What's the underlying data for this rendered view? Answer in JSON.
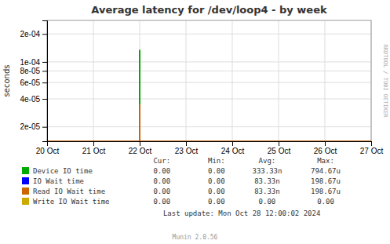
{
  "chart_data": {
    "type": "line",
    "title": "Average latency for /dev/loop4 - by week",
    "ylabel": "seconds",
    "log": "y",
    "grid": true,
    "legend": "bottom",
    "xlim": [
      1729296000,
      1729900800
    ],
    "xticks": [
      {
        "value": 1729296000,
        "label": "20 Oct"
      },
      {
        "value": 1729382400,
        "label": "21 Oct"
      },
      {
        "value": 1729468800,
        "label": "22 Oct"
      },
      {
        "value": 1729555200,
        "label": "23 Oct"
      },
      {
        "value": 1729641600,
        "label": "24 Oct"
      },
      {
        "value": 1729728000,
        "label": "25 Oct"
      },
      {
        "value": 1729814400,
        "label": "26 Oct"
      },
      {
        "value": 1729900800,
        "label": "27 Oct"
      }
    ],
    "ylim": [
      1.4e-05,
      0.00028
    ],
    "yticks": [
      {
        "value": 2e-05,
        "label": "2e-05"
      },
      {
        "value": 4e-05,
        "label": "4e-05"
      },
      {
        "value": 6e-05,
        "label": "6e-05"
      },
      {
        "value": 8e-05,
        "label": "8e-05"
      },
      {
        "value": 0.0001,
        "label": "1e-04"
      },
      {
        "value": 0.0002,
        "label": "2e-04"
      }
    ],
    "series": [
      {
        "name": "Device IO time",
        "color": "#00aa00",
        "x": [
          1729468800,
          1729468800
        ],
        "values": [
          1.4e-05,
          0.000135
        ],
        "stats": [
          "0.00",
          "0.00",
          "333.33n",
          "794.67u"
        ]
      },
      {
        "name": "IO Wait time",
        "color": "#0000ff",
        "stats": [
          "0.00",
          "0.00",
          "83.33n",
          "198.67u"
        ]
      },
      {
        "name": "Read IO Wait time",
        "color": "#cc6600",
        "x": [
          1729468800,
          1729468800
        ],
        "values": [
          1.4e-05,
          3.5e-05
        ],
        "stats": [
          "0.00",
          "0.00",
          "83.33n",
          "198.67u"
        ]
      },
      {
        "name": "Write IO Wait time",
        "color": "#ccaa00",
        "stats": [
          "0.00",
          "0.00",
          "0.00",
          "0.00"
        ]
      }
    ],
    "baseline": 1.4e-05,
    "legend_headers": [
      "Cur:",
      "Min:",
      "Avg:",
      "Max:"
    ],
    "annotations": [
      "Last update: Mon Oct 28 12:00:02 2024",
      "Munin 2.0.56",
      "RRDTOOL / TOBI OETIKER"
    ]
  }
}
